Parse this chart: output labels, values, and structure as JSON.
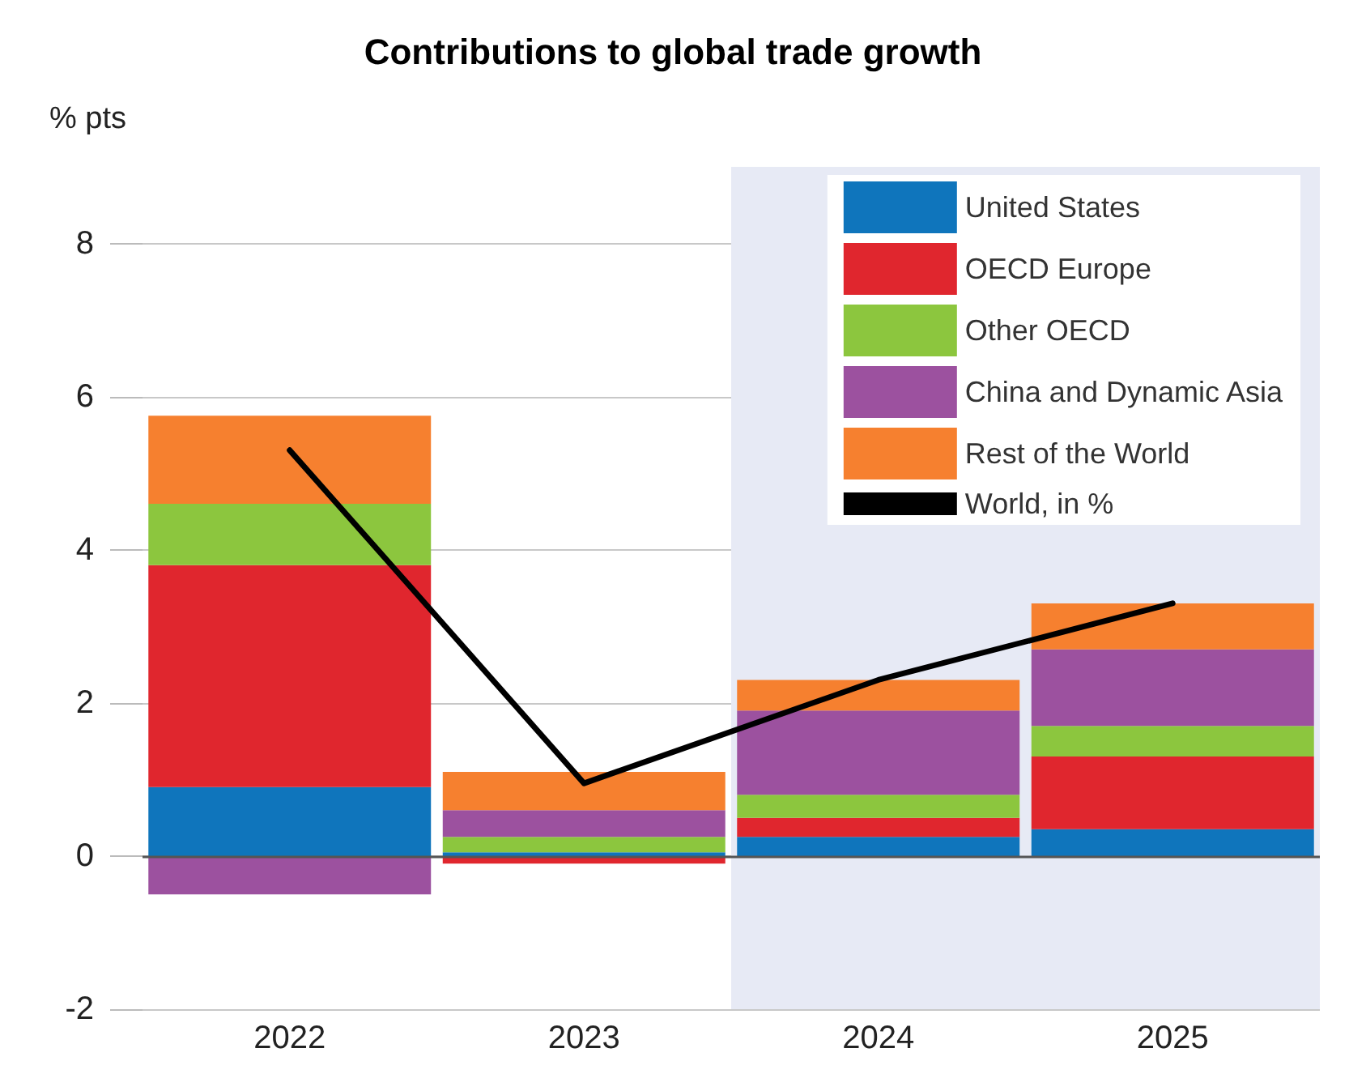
{
  "chart_data": {
    "type": "bar",
    "stacked": true,
    "title": "Contributions to global trade growth",
    "ylabel": "% pts",
    "categories": [
      "2022",
      "2023",
      "2024",
      "2025"
    ],
    "series": [
      {
        "name": "United States",
        "color": "#0f75bc",
        "values": [
          0.9,
          0.05,
          0.25,
          0.35
        ]
      },
      {
        "name": "OECD Europe",
        "color": "#e0262e",
        "values": [
          2.9,
          -0.1,
          0.25,
          0.95
        ]
      },
      {
        "name": "Other OECD",
        "color": "#8cc63e",
        "values": [
          0.8,
          0.2,
          0.3,
          0.4
        ]
      },
      {
        "name": "China and Dynamic Asia",
        "color": "#9c519f",
        "values": [
          -0.5,
          0.35,
          1.1,
          1.0
        ]
      },
      {
        "name": "Rest of the World",
        "color": "#f6802f",
        "values": [
          1.15,
          0.5,
          0.4,
          0.6
        ]
      },
      {
        "name": "World, in %",
        "type": "line",
        "color": "#000000",
        "values": [
          5.3,
          0.95,
          2.3,
          3.3
        ],
        "marker": "none"
      }
    ],
    "ylim": [
      -2,
      9
    ],
    "yticks": [
      -2,
      0,
      2,
      4,
      6,
      8
    ],
    "grid": "y",
    "legend": "top right",
    "bands": [
      {
        "axis": "x",
        "from": "2024",
        "to": "2025",
        "color": "#e7eaf5"
      }
    ],
    "ref_lines": [
      {
        "axis": "y",
        "value": 0,
        "color": "#555555"
      }
    ]
  }
}
